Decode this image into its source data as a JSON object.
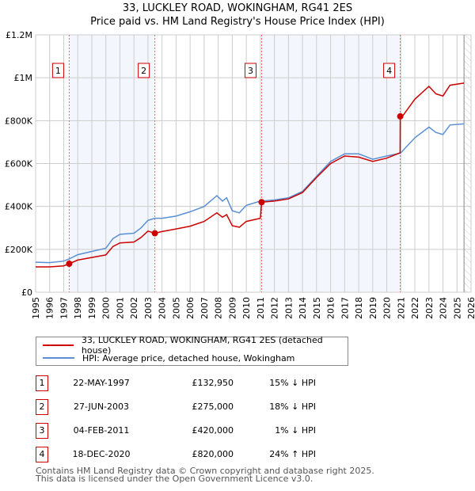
{
  "chart_data": {
    "type": "line",
    "title": "33, LUCKLEY ROAD, WOKINGHAM, RG41 2ES",
    "subtitle": "Price paid vs. HM Land Registry's House Price Index (HPI)",
    "xlim": [
      1995,
      2026
    ],
    "ylim": [
      0,
      1200000
    ],
    "y_ticks": [
      0,
      200000,
      400000,
      600000,
      800000,
      1000000,
      1200000
    ],
    "y_tick_labels": [
      "£0",
      "£200K",
      "£400K",
      "£600K",
      "£800K",
      "£1M",
      "£1.2M"
    ],
    "x_ticks": [
      "1995",
      "1996",
      "1997",
      "1998",
      "1999",
      "2000",
      "2001",
      "2002",
      "2003",
      "2004",
      "2005",
      "2006",
      "2007",
      "2008",
      "2009",
      "2010",
      "2011",
      "2012",
      "2013",
      "2014",
      "2015",
      "2016",
      "2017",
      "2018",
      "2019",
      "2020",
      "2021",
      "2022",
      "2023",
      "2024",
      "2025",
      "2026"
    ],
    "grid": true,
    "x": [
      1995,
      1996,
      1997,
      1997.39,
      1998,
      1999,
      2000,
      2000.5,
      2001,
      2002,
      2002.5,
      2003,
      2003.49,
      2004,
      2005,
      2006,
      2007,
      2007.9,
      2008.3,
      2008.6,
      2009,
      2009.5,
      2010,
      2011.0,
      2011.09,
      2012,
      2013,
      2014,
      2015,
      2016,
      2017,
      2018,
      2019,
      2020,
      2020.95,
      2020.96,
      2021,
      2022,
      2023,
      2023.5,
      2024,
      2024.5,
      2025.5
    ],
    "series": [
      {
        "name": "33, LUCKLEY ROAD, WOKINGHAM, RG41 2ES (detached house)",
        "color": "#cc0000",
        "values": [
          118000,
          118000,
          123000,
          132950,
          150000,
          162000,
          174000,
          213000,
          230000,
          234000,
          255000,
          285000,
          275000,
          283000,
          295000,
          308000,
          330000,
          370000,
          350000,
          362000,
          310000,
          303000,
          330000,
          345000,
          420000,
          425000,
          435000,
          465000,
          535000,
          600000,
          635000,
          630000,
          610000,
          625000,
          650000,
          820000,
          810000,
          900000,
          960000,
          925000,
          915000,
          965000,
          975000
        ]
      },
      {
        "name": "HPI: Average price, detached house, Wokingham",
        "color": "#5b8fd4",
        "values": [
          140000,
          138000,
          145000,
          155000,
          175000,
          190000,
          205000,
          250000,
          270000,
          275000,
          300000,
          335000,
          345000,
          345000,
          355000,
          375000,
          400000,
          450000,
          425000,
          440000,
          380000,
          370000,
          405000,
          425000,
          425000,
          430000,
          440000,
          470000,
          540000,
          610000,
          645000,
          645000,
          620000,
          635000,
          648000,
          650000,
          650000,
          720000,
          770000,
          745000,
          735000,
          780000,
          785000
        ]
      }
    ],
    "sales": [
      {
        "id": "1",
        "x": 1997.39,
        "value": 132950,
        "date": "22-MAY-1997",
        "price": "£132,950",
        "hpi": "15% ↓ HPI"
      },
      {
        "id": "2",
        "x": 2003.49,
        "value": 275000,
        "date": "27-JUN-2003",
        "price": "£275,000",
        "hpi": "18% ↓ HPI"
      },
      {
        "id": "3",
        "x": 2011.09,
        "value": 420000,
        "date": "04-FEB-2011",
        "price": "£420,000",
        "hpi": "1% ↓ HPI"
      },
      {
        "id": "4",
        "x": 2020.96,
        "value": 820000,
        "date": "18-DEC-2020",
        "price": "£820,000",
        "hpi": "24% ↑ HPI"
      }
    ],
    "forecast_start": 2025.5,
    "legend": "below"
  },
  "footer": {
    "line1": "Contains HM Land Registry data © Crown copyright and database right 2025.",
    "line2": "This data is licensed under the Open Government Licence v3.0."
  }
}
